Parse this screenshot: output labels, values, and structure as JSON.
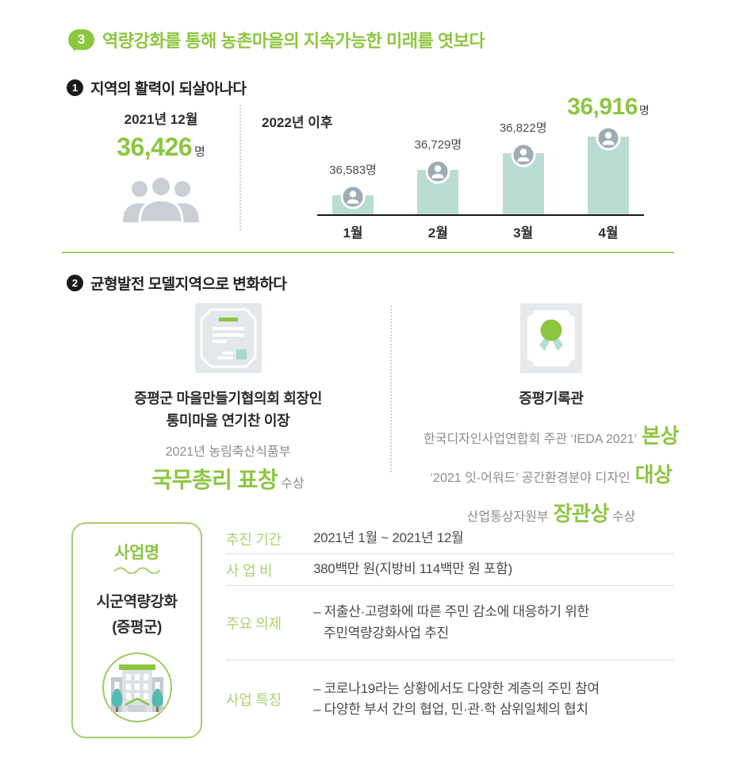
{
  "colors": {
    "accent_green": "#8dc63f",
    "label_green": "#a8d36e",
    "bar_mint": "#badcd2",
    "icon_gray": "#9fabb4",
    "silhouette_gray": "#c9cfd4",
    "panel_gray": "#e3e8ea",
    "teal": "#4fbcae",
    "text_dark": "#2e2e2e",
    "text_gray": "#8c8c8c"
  },
  "icons": {
    "badge": "speech-bubble-number",
    "stat": "people-group-icon",
    "bar_marker": "person-circle-icon",
    "award_left": "certificate-icon",
    "award_right": "medal-certificate-icon",
    "card": "building-icon"
  },
  "header": {
    "badge": "3",
    "title": "역량강화를 통해 농촌마을의 지속가능한 미래를 엿보다"
  },
  "section1": {
    "number": "1",
    "heading": "지역의 활력이 되살아나다",
    "before": {
      "date": "2021년 12월",
      "value": "36,426",
      "unit": "명"
    },
    "chart_label": "2022년 이후"
  },
  "chart_data": {
    "type": "bar",
    "title": "2022년 이후 월별 인구",
    "categories": [
      "1월",
      "2월",
      "3월",
      "4월"
    ],
    "values": [
      36583,
      36729,
      36822,
      36916
    ],
    "value_labels": [
      "36,583명",
      "36,729명",
      "36,822명"
    ],
    "highlight": {
      "index": 3,
      "value": "36,916",
      "unit": "명"
    },
    "baseline_reference": {
      "label": "2021년 12월",
      "value": 36426,
      "unit": "명"
    },
    "xlabel": "",
    "ylabel": "",
    "grid": false,
    "legend": "none",
    "bar_color": "#badcd2"
  },
  "section2": {
    "number": "2",
    "heading": "균형발전 모델지역으로 변화하다",
    "left": {
      "name_line1": "증평군 마을만들기협의회 회장인",
      "name_line2": "통미마을 연기찬 이장",
      "source": "2021년 농림축산식품부",
      "award": "국무총리 표창",
      "suffix": "수상"
    },
    "right": {
      "title": "증평기록관",
      "awards": [
        {
          "prefix": "한국디자인사업연합회 주관 ‘IEDA 2021’",
          "highlight": "본상",
          "suffix": ""
        },
        {
          "prefix": "‘2021 잇-어워드’ 공간환경분야 디자인",
          "highlight": "대상",
          "suffix": ""
        },
        {
          "prefix": "산업통상자원부",
          "highlight": "장관상",
          "suffix": "수상"
        }
      ]
    }
  },
  "project": {
    "card": {
      "title": "사업명",
      "name_line1": "시군역량강화",
      "name_line2": "(증평군)"
    },
    "rows": [
      {
        "label": "추진 기간",
        "line1": "2021년 1월 ~ 2021년 12월",
        "line2": ""
      },
      {
        "label": "사 업 비",
        "line1": "380백만 원(지방비 114백만 원 포함)",
        "line2": ""
      },
      {
        "label": "주요 의제",
        "line1": "– 저출산·고령화에 따른 주민 감소에 대응하기 위한",
        "line2": "주민역량강화사업 추진"
      },
      {
        "label": "사업 특징",
        "line1": "– 코로나19라는 상황에서도 다양한 계층의 주민 참여",
        "line2": "– 다양한 부서 간의 협업, 민·관·학 삼위일체의 협치"
      }
    ]
  }
}
